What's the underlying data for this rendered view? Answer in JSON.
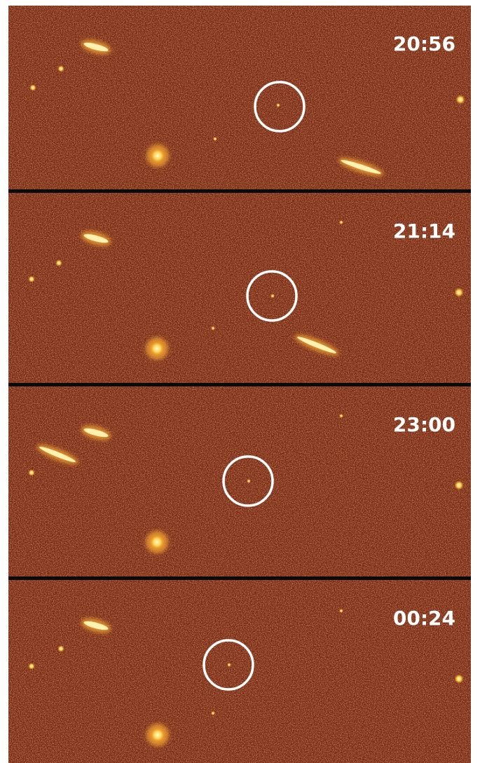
{
  "panels": [
    {
      "time": "20:56"
    },
    {
      "time": "21:14"
    },
    {
      "time": "23:00"
    },
    {
      "time": "00:24"
    }
  ]
}
